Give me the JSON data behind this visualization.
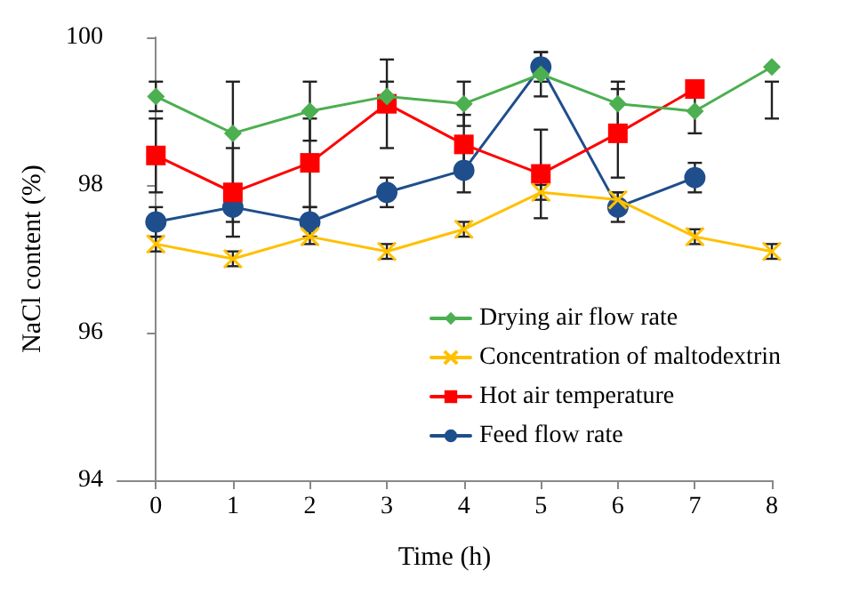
{
  "chart_data": {
    "type": "line",
    "xlabel": "Time (h)",
    "ylabel": "NaCl content (%)",
    "x": [
      0,
      1,
      2,
      3,
      4,
      5,
      6,
      7,
      8
    ],
    "xlim": [
      -0.5,
      8
    ],
    "xticks": [
      0,
      1,
      2,
      3,
      4,
      5,
      6,
      7,
      8
    ],
    "ylim": [
      94,
      100
    ],
    "yticks": [
      94,
      96,
      98,
      100
    ],
    "grid": false,
    "legend": "bottom right",
    "series": [
      {
        "name": "Drying air flow rate",
        "color": "#4caf50",
        "marker": "diamond",
        "values": [
          99.2,
          98.7,
          99.0,
          99.2,
          99.1,
          99.5,
          99.1,
          99.0,
          99.6
        ],
        "errors": [
          0.2,
          0.7,
          0.4,
          0.2,
          0.3,
          0.3,
          0.3,
          0.3,
          [
            98.9,
            99.4
          ]
        ]
      },
      {
        "name": "Concentration of maltodextrin",
        "color": "#ffc000",
        "marker": "cross",
        "values": [
          97.2,
          97.0,
          97.3,
          97.1,
          97.4,
          97.9,
          97.8,
          97.3,
          97.1
        ],
        "errors": [
          0.1,
          0.1,
          0.1,
          0.1,
          0.1,
          0.1,
          0.1,
          0.1,
          0.1
        ]
      },
      {
        "name": "Hot air temperature",
        "color": "#ff0000",
        "marker": "square",
        "values": [
          98.4,
          97.9,
          98.3,
          99.1,
          98.55,
          98.15,
          98.7,
          99.3,
          null
        ],
        "errors": [
          0.5,
          0.6,
          0.6,
          0.6,
          0.4,
          0.6,
          0.6,
          0.1,
          null
        ]
      },
      {
        "name": "Feed flow rate",
        "color": "#1f4e8c",
        "marker": "circle",
        "values": [
          97.5,
          97.7,
          97.5,
          97.9,
          98.2,
          99.6,
          97.7,
          98.1,
          null
        ],
        "errors": [
          0.2,
          0.2,
          0.2,
          0.2,
          0.3,
          0.2,
          0.2,
          0.2,
          null
        ]
      }
    ]
  }
}
